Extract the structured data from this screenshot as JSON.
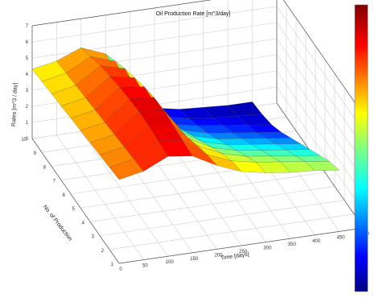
{
  "chart_data": {
    "type": "surface",
    "title": "Oil Production Rate [m^3/day]",
    "xlabel": "Time [days]",
    "ylabel": "No. of Production",
    "zlabel": "Rates [m^3 / day]",
    "x": [
      0,
      50,
      100,
      150,
      200,
      250,
      300,
      350,
      400,
      450
    ],
    "y": [
      1,
      2,
      3,
      4,
      5,
      6,
      7,
      8,
      9,
      10
    ],
    "xlim": [
      0,
      500
    ],
    "ylim": [
      1,
      10
    ],
    "zlim": [
      0,
      7
    ],
    "x_ticks": [
      "0",
      "50",
      "100",
      "150",
      "200",
      "250",
      "300",
      "350",
      "400",
      "450",
      "500"
    ],
    "y_ticks": [
      "1",
      "2",
      "3",
      "4",
      "5",
      "6",
      "7",
      "8",
      "9",
      "10"
    ],
    "z_ticks": [
      "0",
      "1",
      "2",
      "3",
      "4",
      "5",
      "6",
      "7"
    ],
    "z": [
      [
        5.2,
        5.5,
        6.2,
        6.0,
        5.2,
        4.6,
        4.3,
        4.1,
        4.0,
        3.8
      ],
      [
        5.1,
        5.4,
        6.3,
        6.1,
        5.0,
        4.4,
        4.1,
        3.9,
        3.7,
        3.5
      ],
      [
        5.0,
        5.3,
        6.4,
        6.2,
        4.7,
        4.0,
        3.6,
        3.4,
        3.2,
        3.0
      ],
      [
        4.9,
        5.2,
        6.4,
        6.3,
        4.3,
        3.5,
        3.1,
        2.9,
        2.7,
        2.5
      ],
      [
        4.8,
        5.1,
        6.3,
        6.2,
        3.9,
        3.0,
        2.6,
        2.4,
        2.2,
        2.0
      ],
      [
        4.7,
        5.0,
        6.2,
        6.0,
        3.5,
        2.5,
        2.1,
        1.9,
        1.7,
        1.5
      ],
      [
        4.6,
        4.9,
        6.0,
        5.7,
        3.0,
        2.0,
        1.6,
        1.4,
        1.2,
        1.0
      ],
      [
        4.5,
        4.8,
        5.8,
        5.4,
        2.6,
        1.5,
        1.2,
        1.0,
        0.8,
        0.6
      ],
      [
        4.4,
        4.7,
        5.5,
        5.0,
        2.2,
        1.1,
        0.8,
        0.6,
        0.5,
        0.4
      ],
      [
        4.3,
        4.6,
        5.2,
        4.6,
        1.8,
        0.8,
        0.5,
        0.4,
        0.3,
        0.3
      ]
    ],
    "colormap": "jet",
    "grid": true,
    "colorbar": "right"
  }
}
